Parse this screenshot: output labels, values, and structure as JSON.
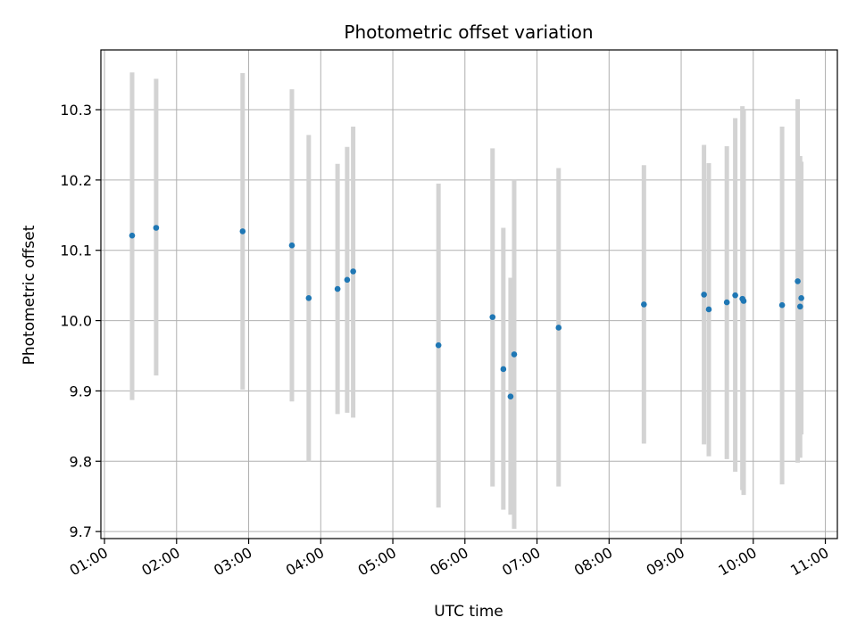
{
  "chart_data": {
    "type": "scatter",
    "title": "Photometric offset variation",
    "xlabel": "UTC time",
    "ylabel": "Photometric offset",
    "x_tick_labels": [
      "01:00",
      "02:00",
      "03:00",
      "04:00",
      "05:00",
      "06:00",
      "07:00",
      "08:00",
      "09:00",
      "10:00",
      "11:00"
    ],
    "y_tick_labels": [
      "9.7",
      "9.8",
      "9.9",
      "10.0",
      "10.1",
      "10.2",
      "10.3"
    ],
    "y_ticks": [
      9.7,
      9.8,
      9.9,
      10.0,
      10.1,
      10.2,
      10.3
    ],
    "xlim": [
      "00:57",
      "11:10"
    ],
    "ylim": [
      9.69,
      10.385
    ],
    "grid": true,
    "colors": {
      "marker": "#1f77b4",
      "errorbar": "#d3d3d3",
      "grid": "#b0b0b0"
    },
    "points": [
      {
        "x": "01:23",
        "y": 10.121,
        "y_low": 9.887,
        "y_high": 10.353
      },
      {
        "x": "01:43",
        "y": 10.132,
        "y_low": 9.922,
        "y_high": 10.344
      },
      {
        "x": "02:55",
        "y": 10.127,
        "y_low": 9.902,
        "y_high": 10.352
      },
      {
        "x": "03:36",
        "y": 10.107,
        "y_low": 9.885,
        "y_high": 10.329
      },
      {
        "x": "03:50",
        "y": 10.032,
        "y_low": 9.8,
        "y_high": 10.264
      },
      {
        "x": "04:14",
        "y": 10.045,
        "y_low": 9.867,
        "y_high": 10.223
      },
      {
        "x": "04:22",
        "y": 10.058,
        "y_low": 9.869,
        "y_high": 10.247
      },
      {
        "x": "04:27",
        "y": 10.07,
        "y_low": 9.862,
        "y_high": 10.276
      },
      {
        "x": "05:38",
        "y": 9.965,
        "y_low": 9.734,
        "y_high": 10.195
      },
      {
        "x": "06:23",
        "y": 10.005,
        "y_low": 9.764,
        "y_high": 10.245
      },
      {
        "x": "06:32",
        "y": 9.931,
        "y_low": 9.731,
        "y_high": 10.132
      },
      {
        "x": "06:38",
        "y": 9.892,
        "y_low": 9.724,
        "y_high": 10.061
      },
      {
        "x": "06:41",
        "y": 9.952,
        "y_low": 9.704,
        "y_high": 10.2
      },
      {
        "x": "07:18",
        "y": 9.99,
        "y_low": 9.764,
        "y_high": 10.217
      },
      {
        "x": "08:29",
        "y": 10.023,
        "y_low": 9.825,
        "y_high": 10.221
      },
      {
        "x": "09:19",
        "y": 10.037,
        "y_low": 9.824,
        "y_high": 10.25
      },
      {
        "x": "09:23",
        "y": 10.016,
        "y_low": 9.807,
        "y_high": 10.224
      },
      {
        "x": "09:38",
        "y": 10.026,
        "y_low": 9.803,
        "y_high": 10.248
      },
      {
        "x": "09:45",
        "y": 10.036,
        "y_low": 9.785,
        "y_high": 10.288
      },
      {
        "x": "09:51",
        "y": 10.031,
        "y_low": 9.759,
        "y_high": 10.305
      },
      {
        "x": "09:52",
        "y": 10.028,
        "y_low": 9.752,
        "y_high": 10.3
      },
      {
        "x": "10:24",
        "y": 10.022,
        "y_low": 9.767,
        "y_high": 10.276
      },
      {
        "x": "10:37",
        "y": 10.056,
        "y_low": 9.798,
        "y_high": 10.315
      },
      {
        "x": "10:39",
        "y": 10.02,
        "y_low": 9.805,
        "y_high": 10.234
      },
      {
        "x": "10:40",
        "y": 10.032,
        "y_low": 9.838,
        "y_high": 10.226
      }
    ]
  }
}
